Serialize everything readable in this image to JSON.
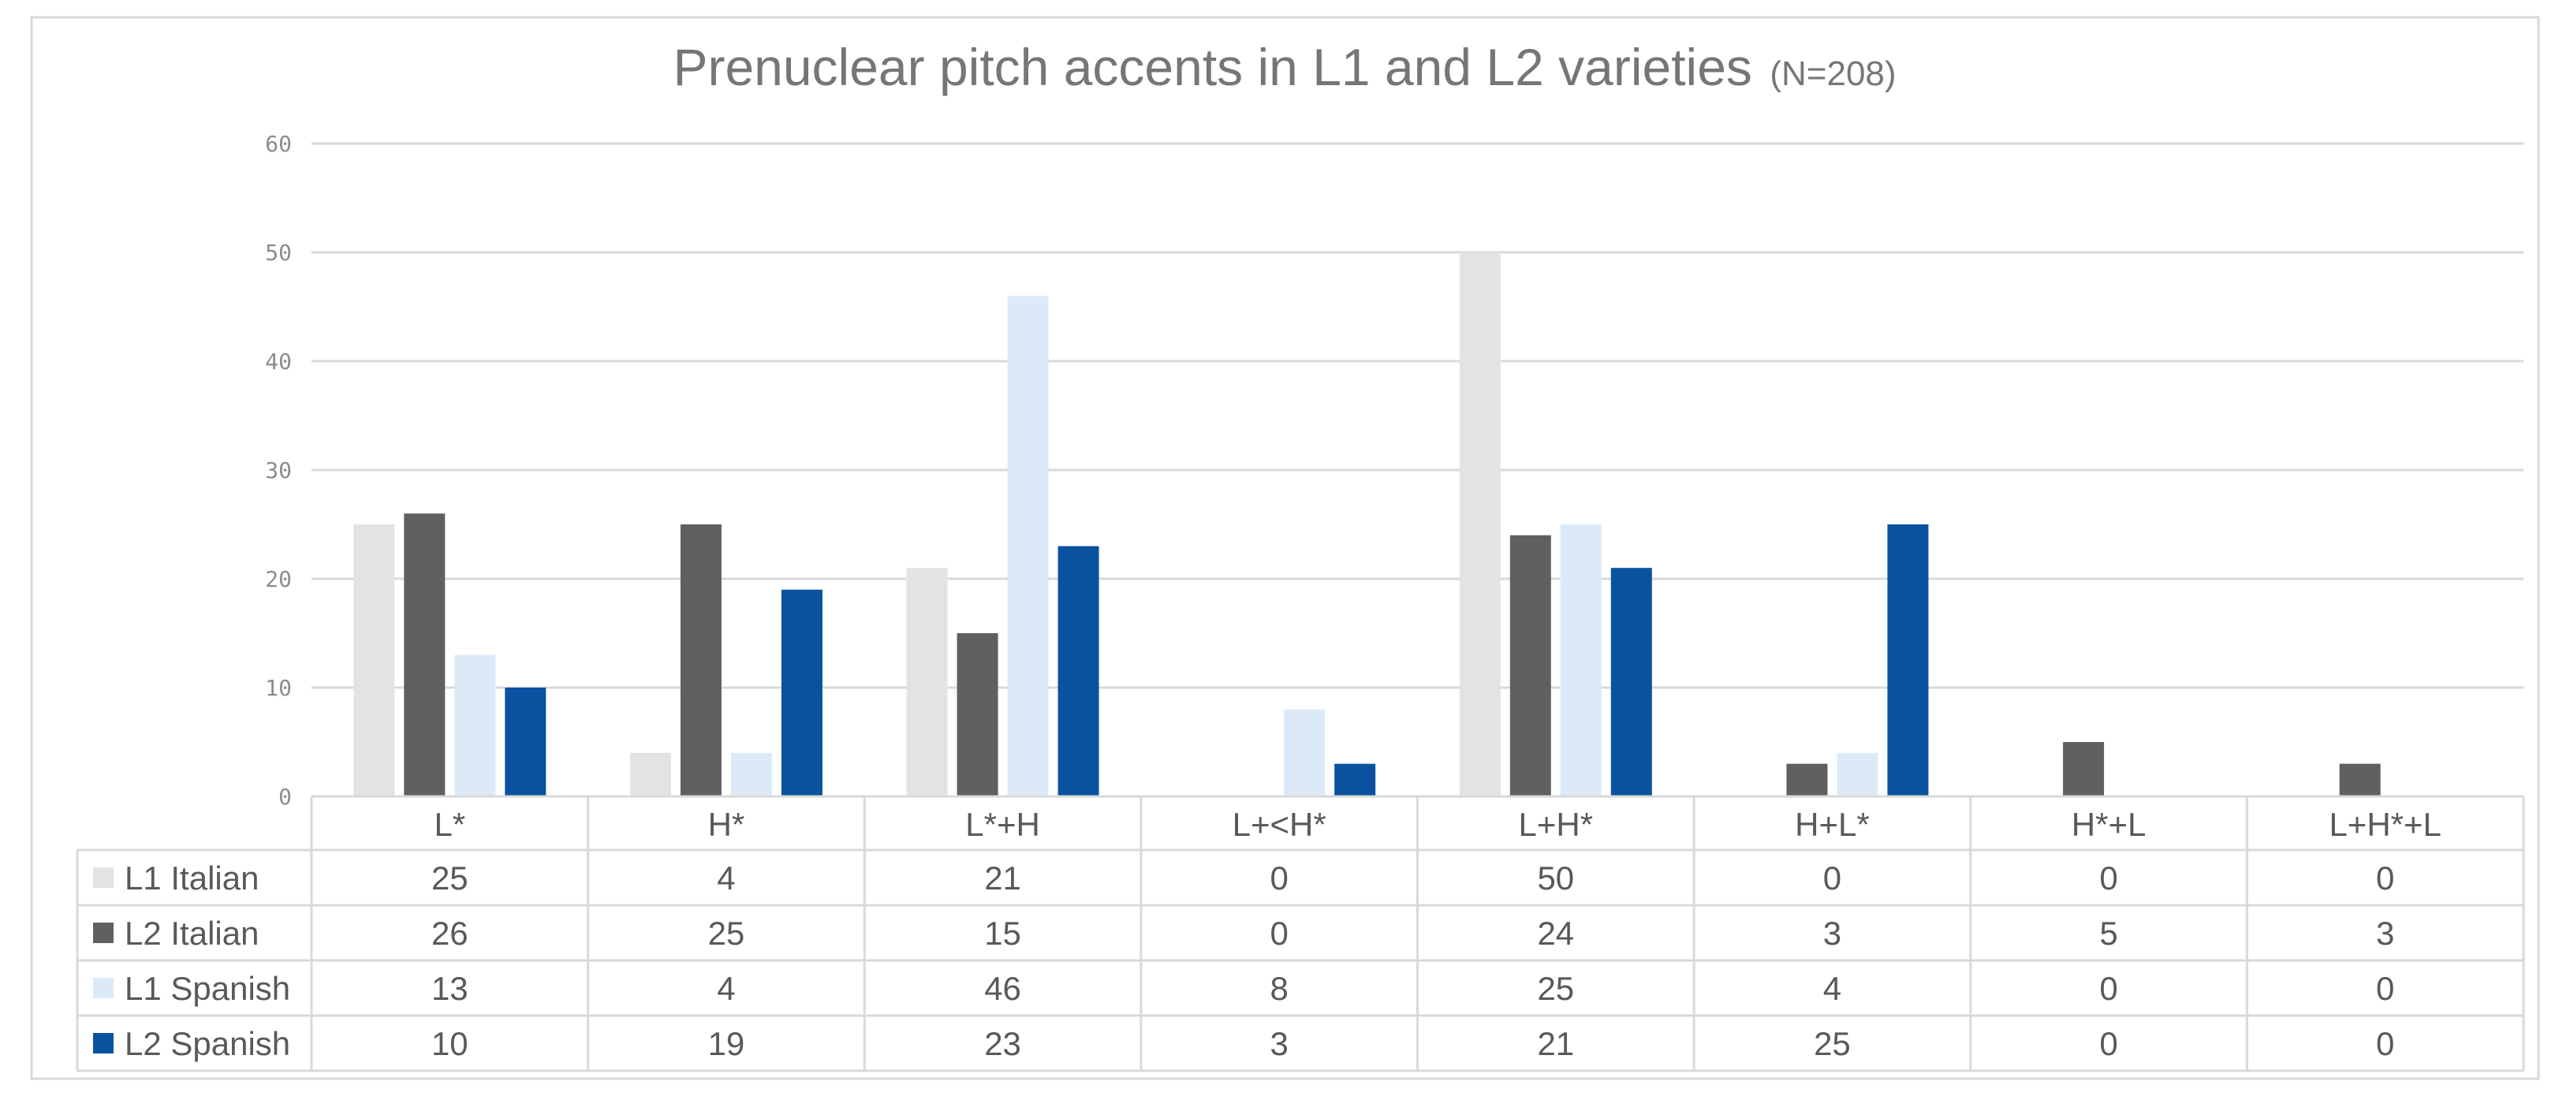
{
  "chart_data": {
    "type": "bar",
    "title": "Prenuclear pitch accents in L1 and L2 varieties",
    "subtitle": "(N=208)",
    "xlabel": "",
    "ylabel": "",
    "ylim": [
      0,
      60
    ],
    "yticks": [
      "0",
      "10",
      "20",
      "30",
      "40",
      "50",
      "60"
    ],
    "grid": true,
    "legend": "data-table-left",
    "categories": [
      "L*",
      "H*",
      "L*+H",
      "L+<H*",
      "L+H*",
      "H+L*",
      "H*+L",
      "L+H*+L"
    ],
    "series": [
      {
        "name": "L1 Italian",
        "color": "#e3e3e3",
        "values": [
          25,
          4,
          21,
          0,
          50,
          0,
          0,
          0
        ]
      },
      {
        "name": "L2 Italian",
        "color": "#606060",
        "values": [
          26,
          25,
          15,
          0,
          24,
          3,
          5,
          3
        ]
      },
      {
        "name": "L1 Spanish",
        "color": "#dceaf7",
        "values": [
          13,
          4,
          46,
          8,
          25,
          4,
          0,
          0
        ]
      },
      {
        "name": "L2 Spanish",
        "color": "#0a52a0",
        "values": [
          10,
          19,
          23,
          3,
          21,
          25,
          0,
          0
        ]
      }
    ]
  }
}
